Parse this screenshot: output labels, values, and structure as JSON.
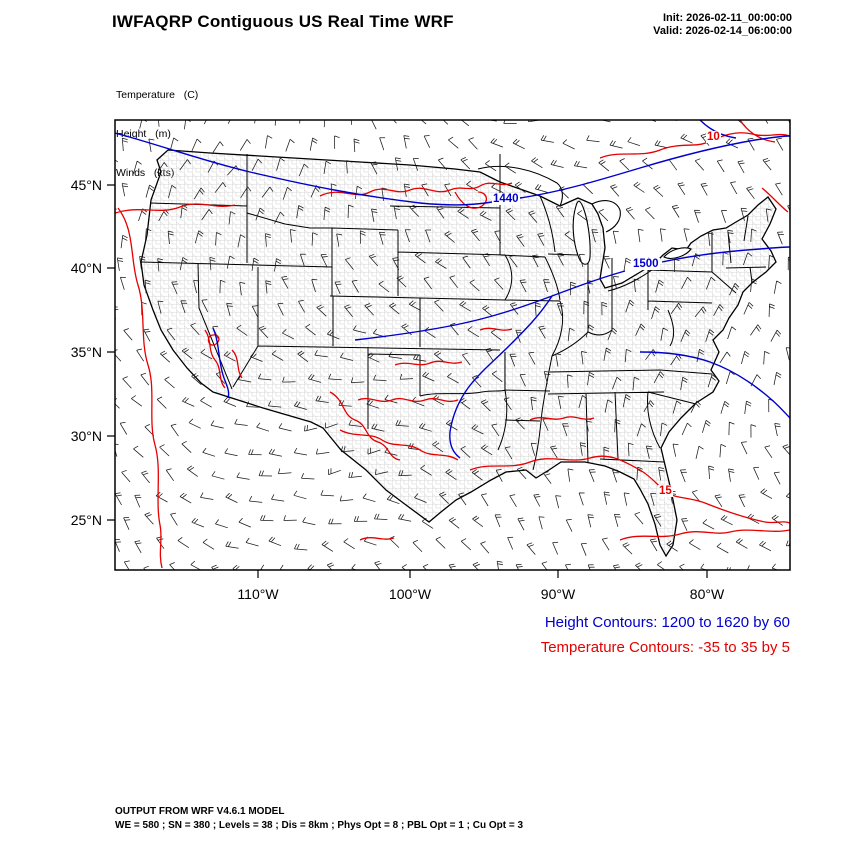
{
  "header": {
    "title": "IWFAQRP Contiguous US Real Time WRF",
    "init": "Init: 2026-02-11_00:00:00",
    "valid": "Valid: 2026-02-14_06:00:00"
  },
  "fields": {
    "temperature": "Temperature   (C)",
    "height": "Height   (m)",
    "winds": "Winds   (kts)"
  },
  "axes": {
    "y": [
      "45°N",
      "40°N",
      "35°N",
      "30°N",
      "25°N"
    ],
    "x": [
      "110°W",
      "100°W",
      "90°W",
      "80°W"
    ]
  },
  "contour_labels": {
    "h1440": "1440",
    "h1500": "1500",
    "t10": "10",
    "t15": "15"
  },
  "legend": {
    "height": "Height Contours: 1200 to 1620 by 60",
    "temperature": "Temperature Contours: -35 to 35 by 5"
  },
  "footer": {
    "line1": "OUTPUT FROM WRF V4.6.1 MODEL",
    "line2": "WE = 580 ; SN = 380 ; Levels = 38 ; Dis = 8km ; Phys Opt = 8 ; PBL Opt = 1 ; Cu Opt = 3"
  },
  "colors": {
    "height_contour": "#0000cd",
    "temperature_contour": "#e60000",
    "basemap": "#000000",
    "counties": "#b5b5b5"
  },
  "chart_data": {
    "type": "contour-map",
    "model": "WRF",
    "title": "IWFAQRP Contiguous US Real Time WRF",
    "region": "Contiguous US",
    "init_time": "2026-02-11_00:00:00",
    "valid_time": "2026-02-14_06:00:00",
    "x_axis": {
      "ticks": [
        "110°W",
        "100°W",
        "90°W",
        "80°W"
      ]
    },
    "y_axis": {
      "ticks": [
        "45°N",
        "40°N",
        "35°N",
        "30°N",
        "25°N"
      ]
    },
    "series": [
      {
        "name": "Temperature",
        "units": "C",
        "render": "contour-lines",
        "color": "#e60000",
        "min": -35,
        "max": 35,
        "interval": 5,
        "labeled_values": [
          10,
          15
        ]
      },
      {
        "name": "Height",
        "units": "m",
        "render": "contour-lines",
        "color": "#0000cd",
        "min": 1200,
        "max": 1620,
        "interval": 60,
        "labeled_values": [
          1440,
          1500
        ]
      },
      {
        "name": "Winds",
        "units": "kts",
        "render": "wind-barbs",
        "color": "#000000"
      }
    ],
    "basemap": "US state and county boundaries",
    "grid": false,
    "legend_position": "below-right"
  }
}
